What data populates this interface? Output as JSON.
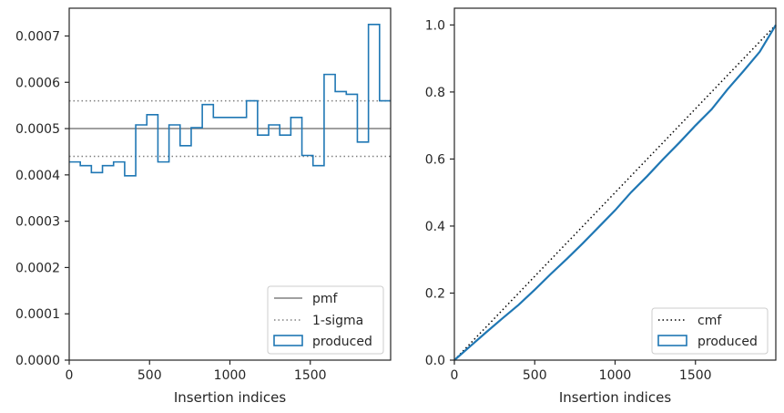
{
  "colors": {
    "hist": "#1f77b4",
    "pmf": "#808080",
    "sigma": "#808080",
    "cmf": "#000000",
    "axis": "#262626"
  },
  "chart_data": [
    {
      "type": "histogram-step",
      "xlabel": "Insertion indices",
      "ylabel": "",
      "xlim": [
        0,
        2000
      ],
      "ylim": [
        0,
        0.00076
      ],
      "x_ticks": [
        0,
        500,
        1000,
        1500
      ],
      "x_tick_labels": [
        "0",
        "500",
        "1000",
        "1500"
      ],
      "y_ticks": [
        0,
        0.0001,
        0.0002,
        0.0003,
        0.0004,
        0.0005,
        0.0006,
        0.0007
      ],
      "y_tick_labels": [
        "0.0000",
        "0.0001",
        "0.0002",
        "0.0003",
        "0.0004",
        "0.0005",
        "0.0006",
        "0.0007"
      ],
      "bin_edges": [
        0,
        69,
        138,
        207,
        276,
        345,
        414,
        483,
        552,
        621,
        690,
        759,
        828,
        897,
        966,
        1034,
        1103,
        1172,
        1241,
        1310,
        1379,
        1448,
        1517,
        1586,
        1655,
        1724,
        1793,
        1862,
        1931,
        2000
      ],
      "bin_values": [
        0.000428,
        0.00042,
        0.000405,
        0.00042,
        0.000428,
        0.000398,
        0.000508,
        0.00053,
        0.000428,
        0.000508,
        0.000463,
        0.000502,
        0.000552,
        0.000524,
        0.000524,
        0.000524,
        0.00056,
        0.000486,
        0.000508,
        0.000486,
        0.000524,
        0.000442,
        0.00042,
        0.000617,
        0.00058,
        0.000574,
        0.000471,
        0.000725,
        0.00056
      ],
      "pmf": 0.0005,
      "sigma_lower": 0.00044,
      "sigma_upper": 0.00056,
      "legend": {
        "position": "lower right",
        "entries": [
          "pmf",
          "1-sigma",
          "produced"
        ]
      }
    },
    {
      "type": "line",
      "xlabel": "Insertion indices",
      "ylabel": "",
      "xlim": [
        0,
        2000
      ],
      "ylim": [
        0,
        1.05
      ],
      "x_ticks": [
        0,
        500,
        1000,
        1500
      ],
      "x_tick_labels": [
        "0",
        "500",
        "1000",
        "1500"
      ],
      "y_ticks": [
        0,
        0.2,
        0.4,
        0.6,
        0.8,
        1.0
      ],
      "y_tick_labels": [
        "0.0",
        "0.2",
        "0.4",
        "0.6",
        "0.8",
        "1.0"
      ],
      "cmf": {
        "x": [
          0,
          2000
        ],
        "y": [
          0,
          1
        ]
      },
      "produced": {
        "x": [
          0,
          100,
          200,
          300,
          400,
          500,
          600,
          700,
          800,
          900,
          1000,
          1100,
          1200,
          1300,
          1400,
          1500,
          1600,
          1700,
          1800,
          1900,
          2000
        ],
        "y": [
          0,
          0.042,
          0.084,
          0.125,
          0.165,
          0.21,
          0.257,
          0.302,
          0.349,
          0.398,
          0.447,
          0.501,
          0.549,
          0.6,
          0.649,
          0.7,
          0.748,
          0.808,
          0.863,
          0.92,
          1.0
        ]
      },
      "legend": {
        "position": "lower right",
        "entries": [
          "cmf",
          "produced"
        ]
      }
    }
  ]
}
